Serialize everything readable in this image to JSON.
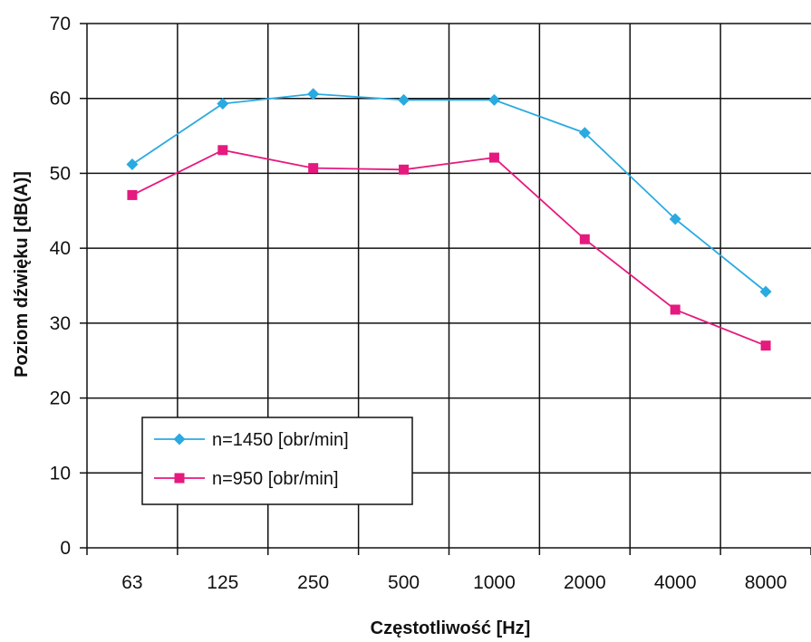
{
  "chart_data": {
    "type": "line",
    "title": "",
    "xlabel": "Częstotliwość [Hz]",
    "ylabel": "Poziom dźwięku [dB(A)]",
    "categories": [
      "63",
      "125",
      "250",
      "500",
      "1000",
      "2000",
      "4000",
      "8000"
    ],
    "yticks": [
      "0",
      "10",
      "20",
      "30",
      "40",
      "50",
      "60",
      "70"
    ],
    "ylim": [
      0,
      70
    ],
    "grid": true,
    "legend_position": "bottom-left",
    "series": [
      {
        "name": "n=1450 [obr/min]",
        "color": "#29aae1",
        "marker": "diamond",
        "values": [
          51.2,
          59.3,
          60.6,
          59.8,
          59.8,
          55.4,
          43.9,
          34.2
        ]
      },
      {
        "name": "n=950 [obr/min]",
        "color": "#e5197e",
        "marker": "square",
        "values": [
          47.1,
          53.1,
          50.7,
          50.5,
          52.1,
          41.2,
          31.8,
          27.0
        ]
      }
    ]
  }
}
